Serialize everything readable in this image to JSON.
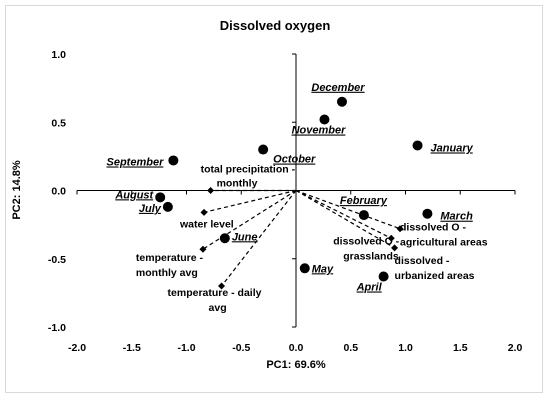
{
  "chart_data": {
    "type": "scatter",
    "title": "Dissolved oxygen",
    "xlabel": "PC1: 69.6%",
    "ylabel": "PC2: 14.8%",
    "xlim": [
      -2.0,
      2.0
    ],
    "ylim": [
      -1.0,
      1.0
    ],
    "x_ticks": [
      "-2.0",
      "-1.5",
      "-1.0",
      "-0.5",
      "0.0",
      "0.5",
      "1.0",
      "1.5",
      "2.0"
    ],
    "y_ticks": [
      "1.0",
      "0.5",
      "0.0",
      "-0.5",
      "-1.0"
    ],
    "grid": false,
    "scores": [
      {
        "label": "December",
        "x": 0.42,
        "y": 0.65
      },
      {
        "label": "November",
        "x": 0.26,
        "y": 0.52
      },
      {
        "label": "January",
        "x": 1.11,
        "y": 0.33
      },
      {
        "label": "October",
        "x": -0.3,
        "y": 0.3
      },
      {
        "label": "September",
        "x": -1.12,
        "y": 0.22
      },
      {
        "label": "August",
        "x": -1.24,
        "y": -0.05
      },
      {
        "label": "July",
        "x": -1.17,
        "y": -0.12
      },
      {
        "label": "February",
        "x": 0.62,
        "y": -0.18
      },
      {
        "label": "March",
        "x": 1.2,
        "y": -0.17
      },
      {
        "label": "June",
        "x": -0.65,
        "y": -0.35
      },
      {
        "label": "May",
        "x": 0.08,
        "y": -0.57
      },
      {
        "label": "April",
        "x": 0.8,
        "y": -0.63
      }
    ],
    "loadings": [
      {
        "label": "total precipitation - monthly",
        "x": -0.78,
        "y": 0.0
      },
      {
        "label": "water level",
        "x": -0.84,
        "y": -0.16
      },
      {
        "label": "temperature - monthly avg",
        "x": -0.85,
        "y": -0.43
      },
      {
        "label": "temperature - daily avg",
        "x": -0.68,
        "y": -0.7
      },
      {
        "label": "dissolved O - agricultural areas",
        "x": 0.95,
        "y": -0.28
      },
      {
        "label": "dissolved O - grasslands",
        "x": 0.87,
        "y": -0.35
      },
      {
        "label": "dissolved - urbanized areas",
        "x": 0.9,
        "y": -0.42
      }
    ]
  }
}
